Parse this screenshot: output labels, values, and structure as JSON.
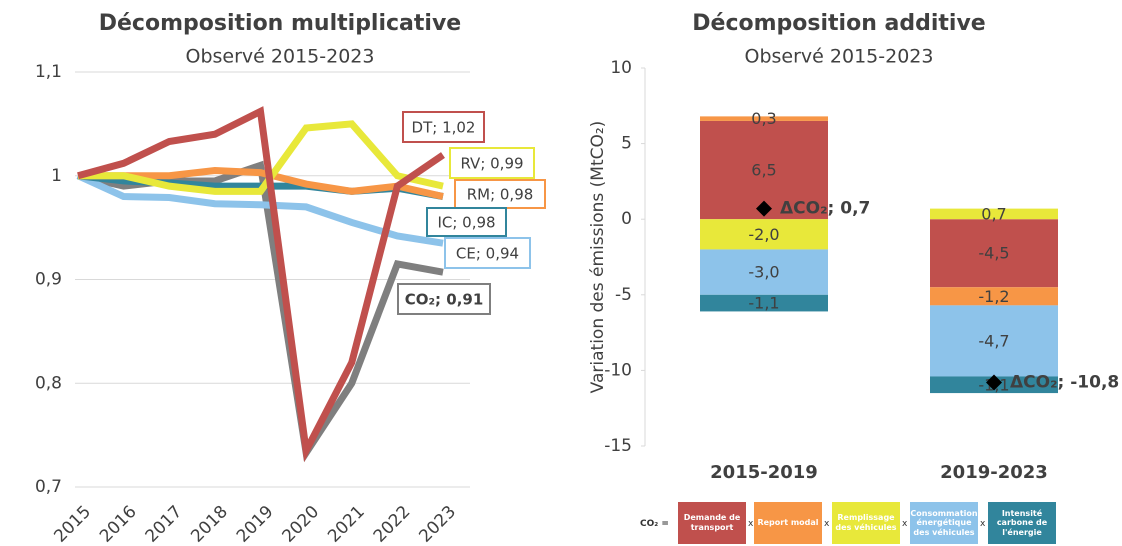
{
  "chart_data": [
    {
      "type": "line",
      "title": "Décomposition multiplicative",
      "subtitle": "Observé 2015-2023",
      "categories": [
        "2015",
        "2016",
        "2017",
        "2018",
        "2019",
        "2020",
        "2021",
        "2022",
        "2023"
      ],
      "ylim": [
        0.7,
        1.1
      ],
      "yticks": [
        {
          "value": 0.7,
          "label": "0,7"
        },
        {
          "value": 0.8,
          "label": "0,8"
        },
        {
          "value": 0.9,
          "label": "0,9"
        },
        1,
        {
          "value": 1.1,
          "label": "1,1"
        }
      ],
      "grid": true,
      "series": [
        {
          "label": "DT; 1,02",
          "color": "#c0504d",
          "values": [
            1.0,
            1.012,
            1.033,
            1.04,
            1.062,
            0.735,
            0.82,
            0.99,
            1.02
          ]
        },
        {
          "label": "RV; 0,99",
          "color": "#e8e83a",
          "values": [
            1.0,
            1.0,
            0.99,
            0.985,
            0.985,
            1.046,
            1.05,
            1.0,
            0.99
          ]
        },
        {
          "label": "RM; 0,98",
          "color": "#f79646",
          "values": [
            1.0,
            1.0,
            1.0,
            1.005,
            1.003,
            0.992,
            0.985,
            0.99,
            0.98
          ]
        },
        {
          "label": "IC; 0,98",
          "color": "#31859c",
          "values": [
            1.0,
            0.995,
            0.993,
            0.99,
            0.99,
            0.99,
            0.985,
            0.988,
            0.98
          ]
        },
        {
          "label": "CE; 0,94",
          "color": "#8dc3ea",
          "values": [
            1.0,
            0.98,
            0.979,
            0.973,
            0.972,
            0.97,
            0.955,
            0.942,
            0.935
          ]
        },
        {
          "label": "CO₂; 0,91",
          "color": "#7f7f7f",
          "values": [
            1.0,
            0.99,
            0.995,
            0.995,
            1.01,
            0.733,
            0.8,
            0.915,
            0.907
          ]
        }
      ]
    },
    {
      "type": "stacked_bar",
      "title": "Décomposition additive",
      "subtitle": "Observé 2015-2023",
      "ylabel": "Variation des émissions (MtCO₂)",
      "categories": [
        "2015-2019",
        "2019-2023"
      ],
      "ylim": [
        -15,
        10
      ],
      "yticks": [
        -15,
        -10,
        -5,
        0,
        5,
        10
      ],
      "grid": false,
      "series": [
        {
          "name": "Demande de transport",
          "color": "#c0504d",
          "values": [
            6.5,
            -4.5
          ],
          "value_labels": [
            "6,5",
            "-4,5"
          ]
        },
        {
          "name": "Report modal",
          "color": "#f79646",
          "values": [
            0.3,
            -1.2
          ],
          "value_labels": [
            "0,3",
            "-1,2"
          ]
        },
        {
          "name": "Remplissage des véhicules",
          "color": "#e8e83a",
          "values": [
            -2.0,
            0.7
          ],
          "value_labels": [
            "-2,0",
            "0,7"
          ]
        },
        {
          "name": "Consommation énergétique des véhicules",
          "color": "#8dc3ea",
          "values": [
            -3.0,
            -4.7
          ],
          "value_labels": [
            "-3,0",
            "-4,7"
          ]
        },
        {
          "name": "Intensité carbone de l'énergie",
          "color": "#31859c",
          "values": [
            -1.1,
            -1.1
          ],
          "value_labels": [
            "-1,1",
            "-1,1"
          ]
        }
      ],
      "totals": {
        "values": [
          0.7,
          -10.8
        ],
        "value_labels": [
          "ΔCO₂; 0,7",
          "ΔCO₂; -10,8"
        ]
      },
      "legend_prefix": "CO₂ =",
      "legend_separator": "x"
    }
  ]
}
